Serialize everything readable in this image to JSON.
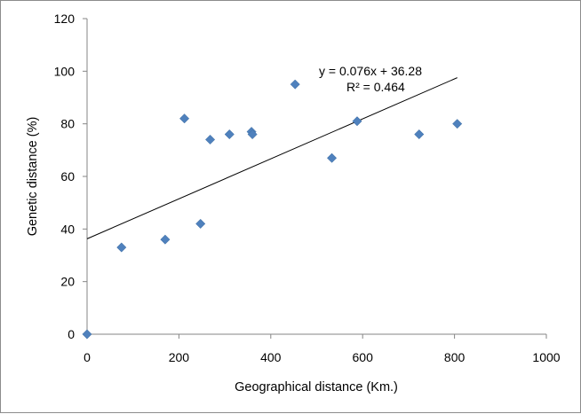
{
  "chart_data": {
    "type": "scatter",
    "xlabel": "Geographical distance (Km.)",
    "ylabel": "Genetic distance (%)",
    "xlim": [
      0,
      1000
    ],
    "ylim": [
      0,
      120
    ],
    "x_ticks": [
      0,
      200,
      400,
      600,
      800,
      1000
    ],
    "y_ticks": [
      0,
      20,
      40,
      60,
      80,
      100,
      120
    ],
    "x_tick_labels": [
      "0",
      "200",
      "400",
      "600",
      "800",
      "1000"
    ],
    "y_tick_labels": [
      "0",
      "20",
      "40",
      "60",
      "80",
      "100",
      "120"
    ],
    "grid": false,
    "legend": "none",
    "marker_color": "#4F81BD",
    "marker_shape": "diamond",
    "points": [
      {
        "x": 0,
        "y": 0
      },
      {
        "x": 75,
        "y": 33
      },
      {
        "x": 170,
        "y": 36
      },
      {
        "x": 212,
        "y": 82
      },
      {
        "x": 247,
        "y": 42
      },
      {
        "x": 268,
        "y": 74
      },
      {
        "x": 310,
        "y": 76
      },
      {
        "x": 358,
        "y": 77
      },
      {
        "x": 360,
        "y": 76
      },
      {
        "x": 453,
        "y": 95
      },
      {
        "x": 533,
        "y": 67
      },
      {
        "x": 588,
        "y": 81
      },
      {
        "x": 723,
        "y": 76
      },
      {
        "x": 806,
        "y": 80
      }
    ],
    "trendline": {
      "slope": 0.076,
      "intercept": 36.28,
      "x_range": [
        0,
        806
      ],
      "equation_label": "y = 0.076x  + 36.28",
      "r2_label": "R² = 0.464"
    }
  }
}
